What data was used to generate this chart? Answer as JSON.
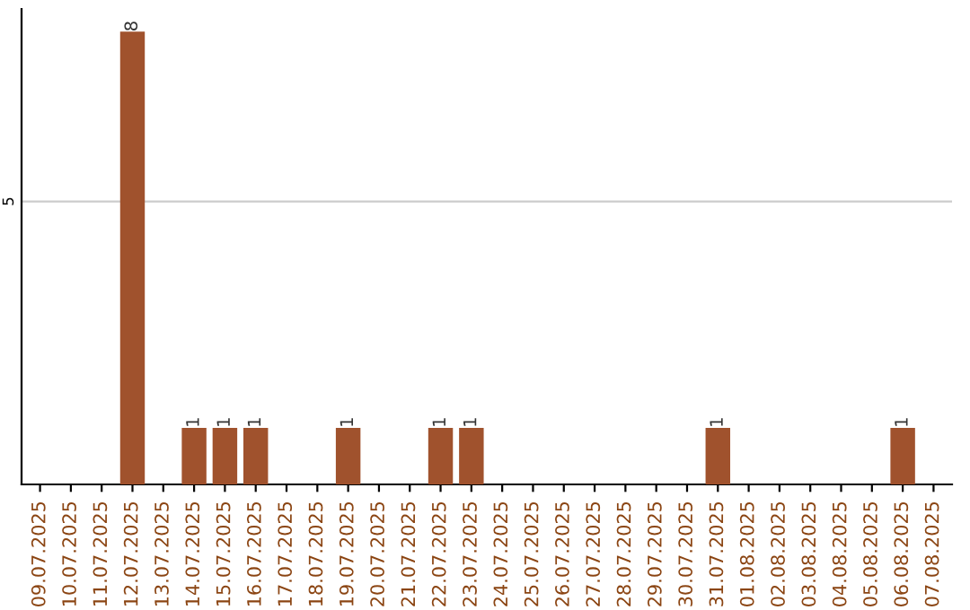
{
  "chart_data": {
    "type": "bar",
    "categories": [
      "09.07.2025",
      "10.07.2025",
      "11.07.2025",
      "12.07.2025",
      "13.07.2025",
      "14.07.2025",
      "15.07.2025",
      "16.07.2025",
      "17.07.2025",
      "18.07.2025",
      "19.07.2025",
      "20.07.2025",
      "21.07.2025",
      "22.07.2025",
      "23.07.2025",
      "24.07.2025",
      "25.07.2025",
      "26.07.2025",
      "27.07.2025",
      "28.07.2025",
      "29.07.2025",
      "30.07.2025",
      "31.07.2025",
      "01.08.2025",
      "02.08.2025",
      "03.08.2025",
      "04.08.2025",
      "05.08.2025",
      "06.08.2025",
      "07.08.2025"
    ],
    "values": [
      0,
      0,
      0,
      8,
      0,
      1,
      1,
      1,
      0,
      0,
      1,
      0,
      0,
      1,
      1,
      0,
      0,
      0,
      0,
      0,
      0,
      0,
      1,
      0,
      0,
      0,
      0,
      0,
      1,
      0
    ],
    "value_labels": [
      null,
      null,
      null,
      "8",
      null,
      "1",
      "1",
      "1",
      null,
      null,
      "1",
      null,
      null,
      "1",
      "1",
      null,
      null,
      null,
      null,
      null,
      null,
      null,
      "1",
      null,
      null,
      null,
      null,
      null,
      "1",
      null
    ],
    "color": "#a0522d",
    "ylim": [
      0,
      8.4
    ],
    "yticks": [
      5
    ],
    "grid": "y"
  }
}
